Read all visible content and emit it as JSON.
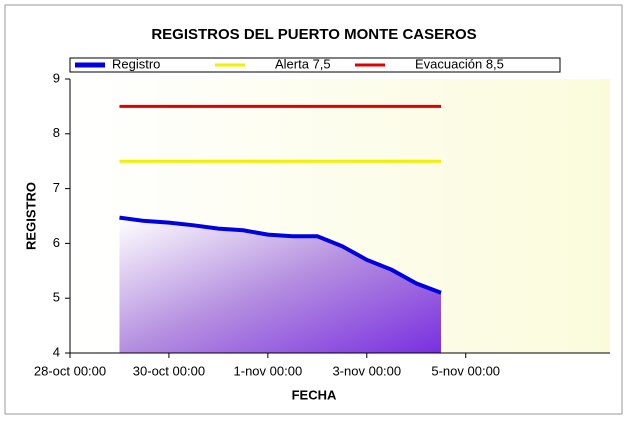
{
  "chart_data": {
    "type": "line",
    "title": "REGISTROS DEL PUERTO MONTE CASEROS",
    "x_label": "FECHA",
    "y_label": "REGISTRO",
    "x": [
      "29-oct 00:00",
      "29-oct 12:00",
      "30-oct 00:00",
      "30-oct 12:00",
      "31-oct 00:00",
      "31-oct 12:00",
      "1-nov 00:00",
      "1-nov 12:00",
      "2-nov 00:00",
      "2-nov 12:00",
      "3-nov 00:00",
      "3-nov 12:00",
      "4-nov 00:00",
      "4-nov 12:00"
    ],
    "series": [
      {
        "name": "Registro",
        "color": "#0000e0",
        "values": [
          6.47,
          6.41,
          6.38,
          6.33,
          6.27,
          6.24,
          6.16,
          6.13,
          6.13,
          5.95,
          5.7,
          5.52,
          5.27,
          5.1
        ]
      },
      {
        "name": "Alerta 7,5",
        "color": "#f0f000",
        "values": [
          7.5,
          7.5,
          7.5,
          7.5,
          7.5,
          7.5,
          7.5,
          7.5,
          7.5,
          7.5,
          7.5,
          7.5,
          7.5,
          7.5
        ]
      },
      {
        "name": "Evacuación 8,5",
        "color": "#e00000",
        "values": [
          8.5,
          8.5,
          8.5,
          8.5,
          8.5,
          8.5,
          8.5,
          8.5,
          8.5,
          8.5,
          8.5,
          8.5,
          8.5,
          8.5
        ]
      }
    ],
    "xlim": [
      "28-oct 00:00",
      "7-nov 22:00"
    ],
    "xticks": [
      "28-oct 00:00",
      "30-oct 00:00",
      "1-nov 00:00",
      "3-nov 00:00",
      "5-nov 00:00"
    ],
    "ylim": [
      4,
      9
    ],
    "yticks": [
      4,
      5,
      6,
      7,
      8,
      9
    ],
    "grid": false,
    "legend": "top"
  }
}
